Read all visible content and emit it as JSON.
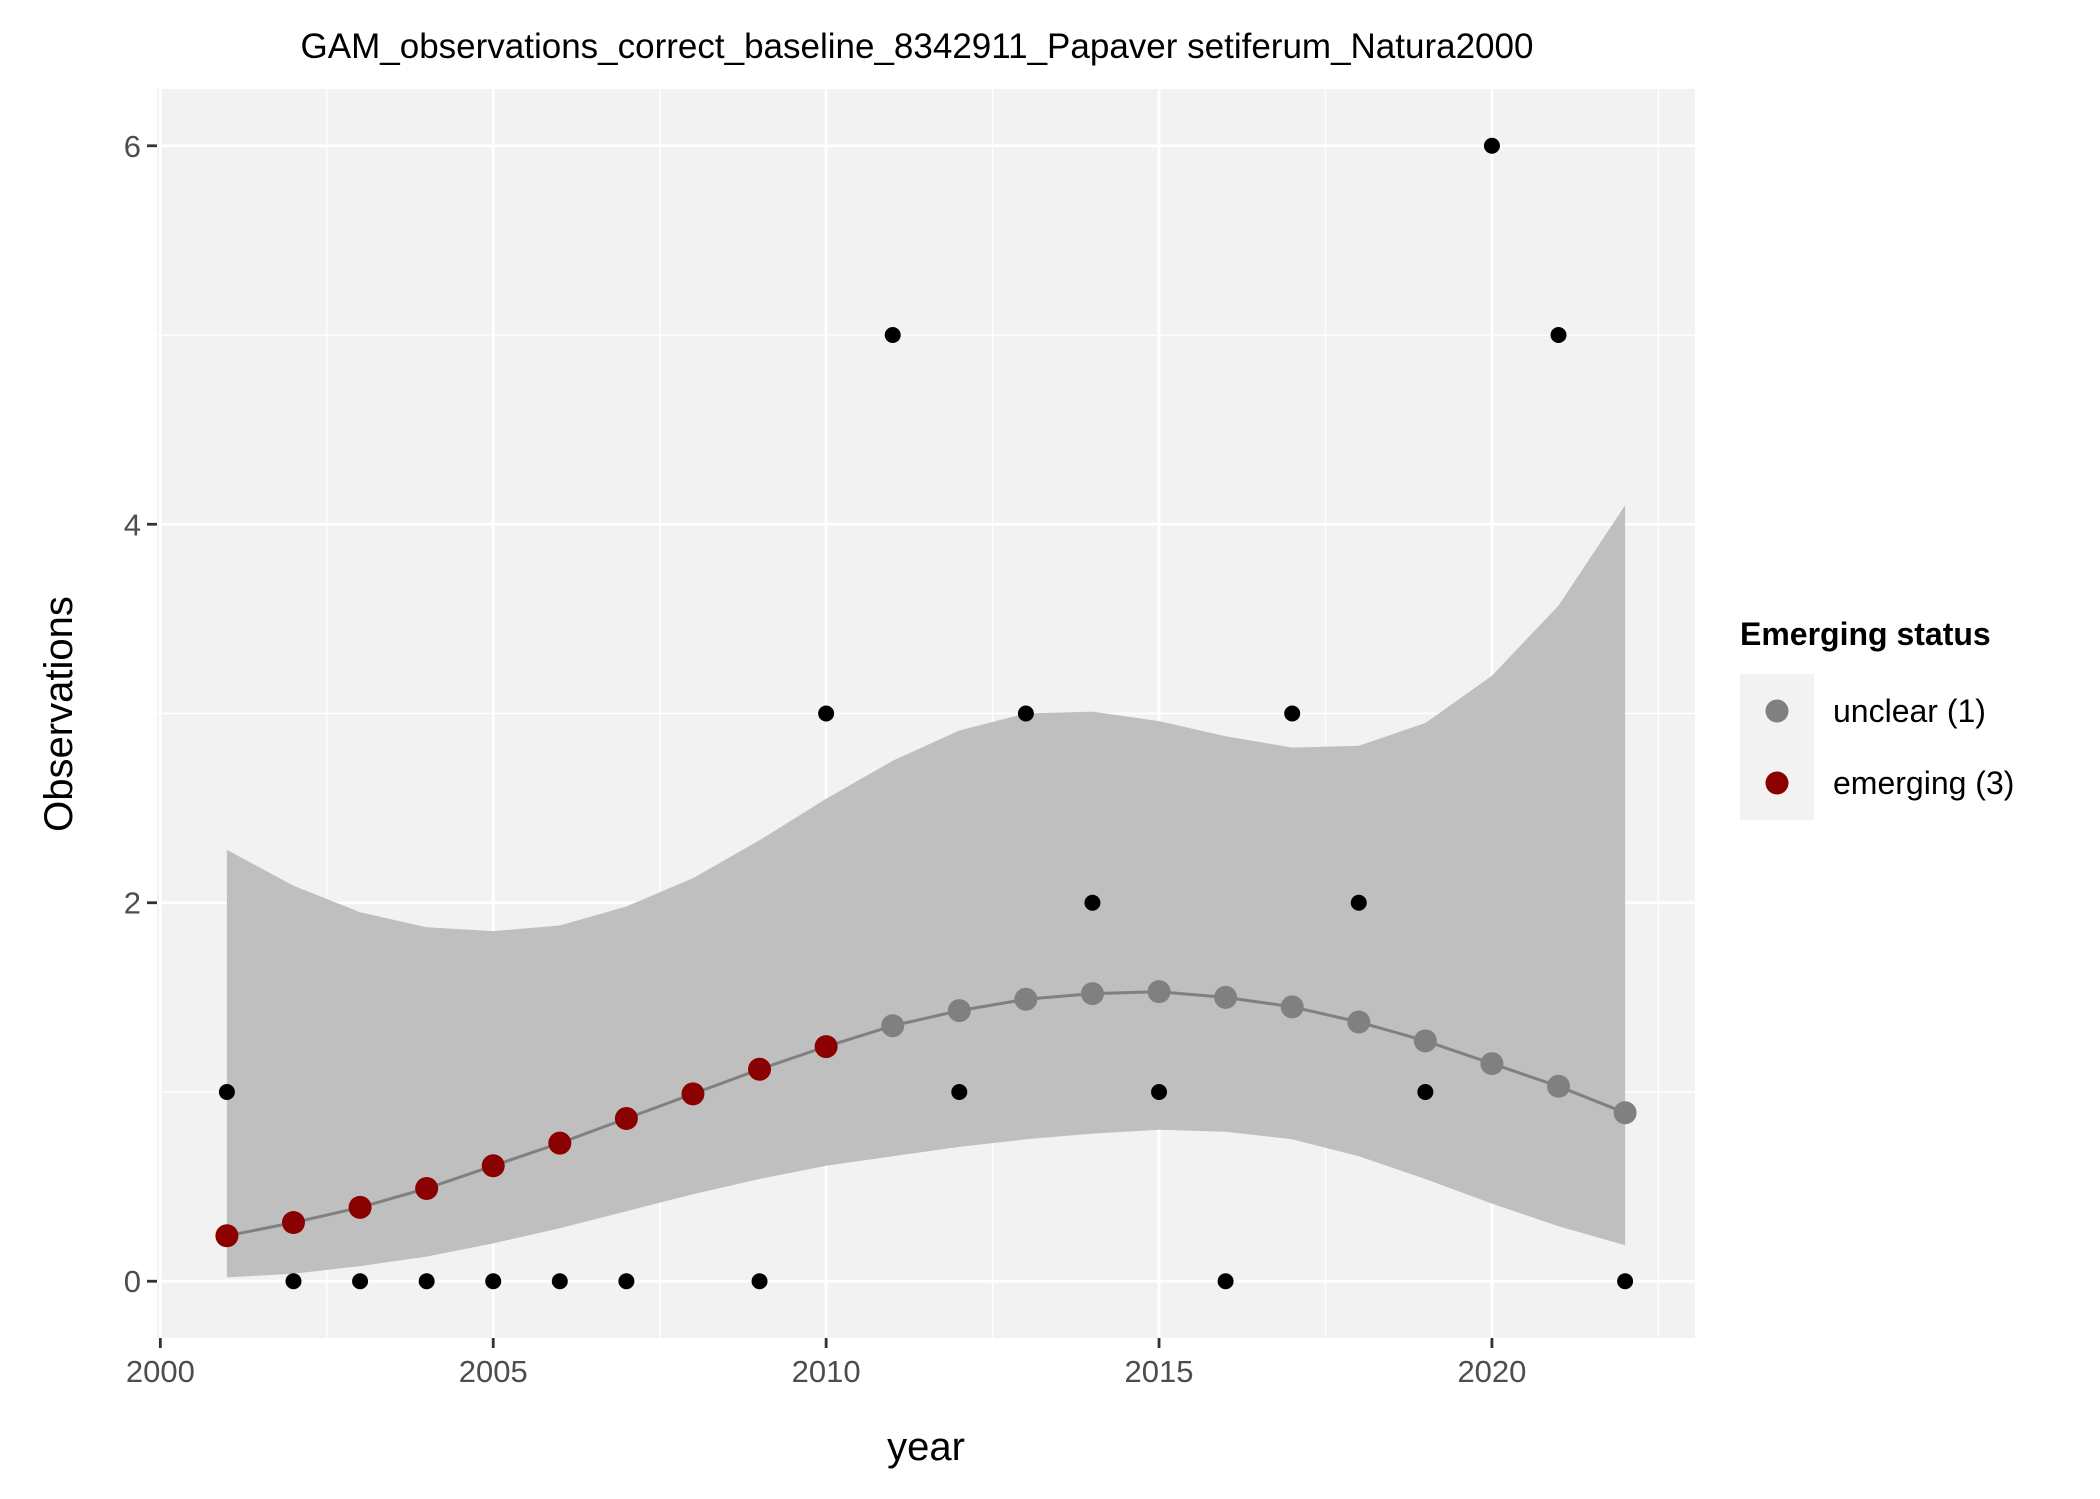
{
  "chart_data": {
    "type": "scatter",
    "title": "GAM_observations_correct_baseline_8342911_Papaver setiferum_Natura2000",
    "xlabel": "year",
    "ylabel": "Observations",
    "xlim": [
      1999.95,
      2023.05
    ],
    "ylim": [
      -0.3,
      6.3
    ],
    "x_ticks": [
      2000,
      2005,
      2010,
      2015,
      2020
    ],
    "y_ticks": [
      0,
      2,
      4,
      6
    ],
    "grid": true,
    "legend_position": "right",
    "legend_title": "Emerging status",
    "observations": {
      "color": "#000000",
      "x": [
        2001,
        2002,
        2003,
        2004,
        2005,
        2006,
        2007,
        2009,
        2010,
        2011,
        2012,
        2013,
        2014,
        2015,
        2016,
        2017,
        2018,
        2019,
        2020,
        2021,
        2022
      ],
      "y": [
        1,
        0,
        0,
        0,
        0,
        0,
        0,
        0,
        3,
        5,
        1,
        3,
        2,
        1,
        0,
        3,
        2,
        1,
        6,
        5,
        0
      ]
    },
    "fit": {
      "line_color": "#808080",
      "band_color": "#bfbfbf",
      "x": [
        2001,
        2002,
        2003,
        2004,
        2005,
        2006,
        2007,
        2008,
        2009,
        2010,
        2011,
        2012,
        2013,
        2014,
        2015,
        2016,
        2017,
        2018,
        2019,
        2020,
        2021,
        2022
      ],
      "y": [
        0.24,
        0.31,
        0.39,
        0.49,
        0.61,
        0.73,
        0.86,
        0.99,
        1.12,
        1.24,
        1.35,
        1.43,
        1.49,
        1.52,
        1.53,
        1.5,
        1.45,
        1.37,
        1.27,
        1.15,
        1.03,
        0.89
      ],
      "lower": [
        0.02,
        0.04,
        0.08,
        0.13,
        0.2,
        0.28,
        0.37,
        0.46,
        0.54,
        0.61,
        0.66,
        0.71,
        0.75,
        0.78,
        0.8,
        0.79,
        0.75,
        0.66,
        0.54,
        0.41,
        0.29,
        0.19
      ],
      "upper": [
        2.28,
        2.09,
        1.95,
        1.87,
        1.85,
        1.88,
        1.98,
        2.13,
        2.33,
        2.55,
        2.75,
        2.91,
        3.0,
        3.01,
        2.96,
        2.88,
        2.82,
        2.83,
        2.95,
        3.2,
        3.57,
        4.1
      ],
      "status": [
        "emerging",
        "emerging",
        "emerging",
        "emerging",
        "emerging",
        "emerging",
        "emerging",
        "emerging",
        "emerging",
        "emerging",
        "unclear",
        "unclear",
        "unclear",
        "unclear",
        "unclear",
        "unclear",
        "unclear",
        "unclear",
        "unclear",
        "unclear",
        "unclear",
        "unclear"
      ]
    },
    "legend": [
      {
        "key": "unclear",
        "label": "unclear (1)",
        "color": "#808080"
      },
      {
        "key": "emerging",
        "label": "emerging (3)",
        "color": "#8b0000"
      }
    ],
    "panel_background": "#f2f2f2",
    "gridline_color": "#ffffff"
  }
}
